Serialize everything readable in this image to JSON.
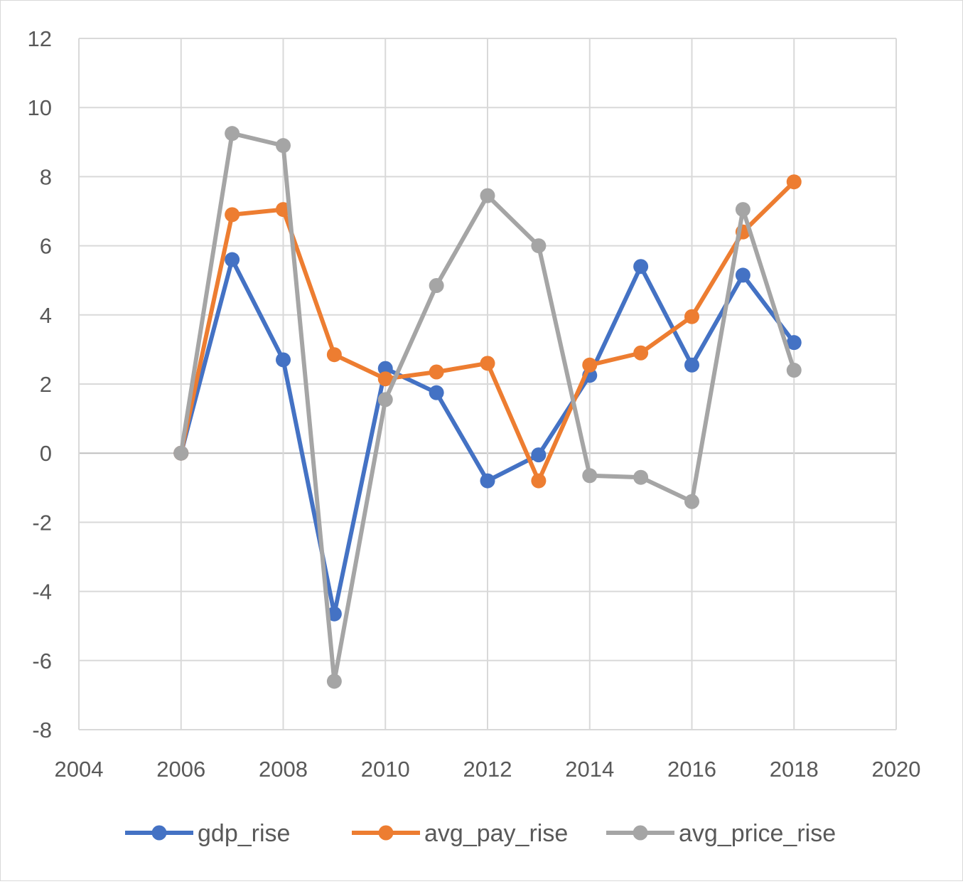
{
  "chart_data": {
    "type": "scatter",
    "mode": "lines+markers",
    "title": "",
    "xlabel": "",
    "ylabel": "",
    "xlim": [
      2004,
      2020
    ],
    "ylim": [
      -8,
      12
    ],
    "x_ticks": [
      2004,
      2006,
      2008,
      2010,
      2012,
      2014,
      2016,
      2018,
      2020
    ],
    "y_ticks": [
      -8,
      -6,
      -4,
      -2,
      0,
      2,
      4,
      6,
      8,
      10,
      12
    ],
    "grid": true,
    "legend_position": "bottom",
    "series": [
      {
        "name": "gdp_rise",
        "color": "#4472C4",
        "x": [
          2006,
          2007,
          2008,
          2009,
          2010,
          2011,
          2012,
          2013,
          2014,
          2015,
          2016,
          2017,
          2018
        ],
        "y": [
          0,
          5.6,
          2.7,
          -4.65,
          2.45,
          1.75,
          -0.8,
          -0.05,
          2.25,
          5.4,
          2.55,
          5.15,
          3.2
        ]
      },
      {
        "name": "avg_pay_rise",
        "color": "#ED7D31",
        "x": [
          2006,
          2007,
          2008,
          2009,
          2010,
          2011,
          2012,
          2013,
          2014,
          2015,
          2016,
          2017,
          2018
        ],
        "y": [
          0,
          6.9,
          7.05,
          2.85,
          2.15,
          2.35,
          2.6,
          -0.8,
          2.55,
          2.9,
          3.95,
          6.4,
          7.85
        ]
      },
      {
        "name": "avg_price_rise",
        "color": "#A5A5A5",
        "x": [
          2006,
          2007,
          2008,
          2009,
          2010,
          2011,
          2012,
          2013,
          2014,
          2015,
          2016,
          2017,
          2018
        ],
        "y": [
          0,
          9.25,
          8.9,
          -6.6,
          1.55,
          4.85,
          7.45,
          6.0,
          -0.65,
          -0.7,
          -1.4,
          7.05,
          2.4
        ]
      }
    ]
  }
}
